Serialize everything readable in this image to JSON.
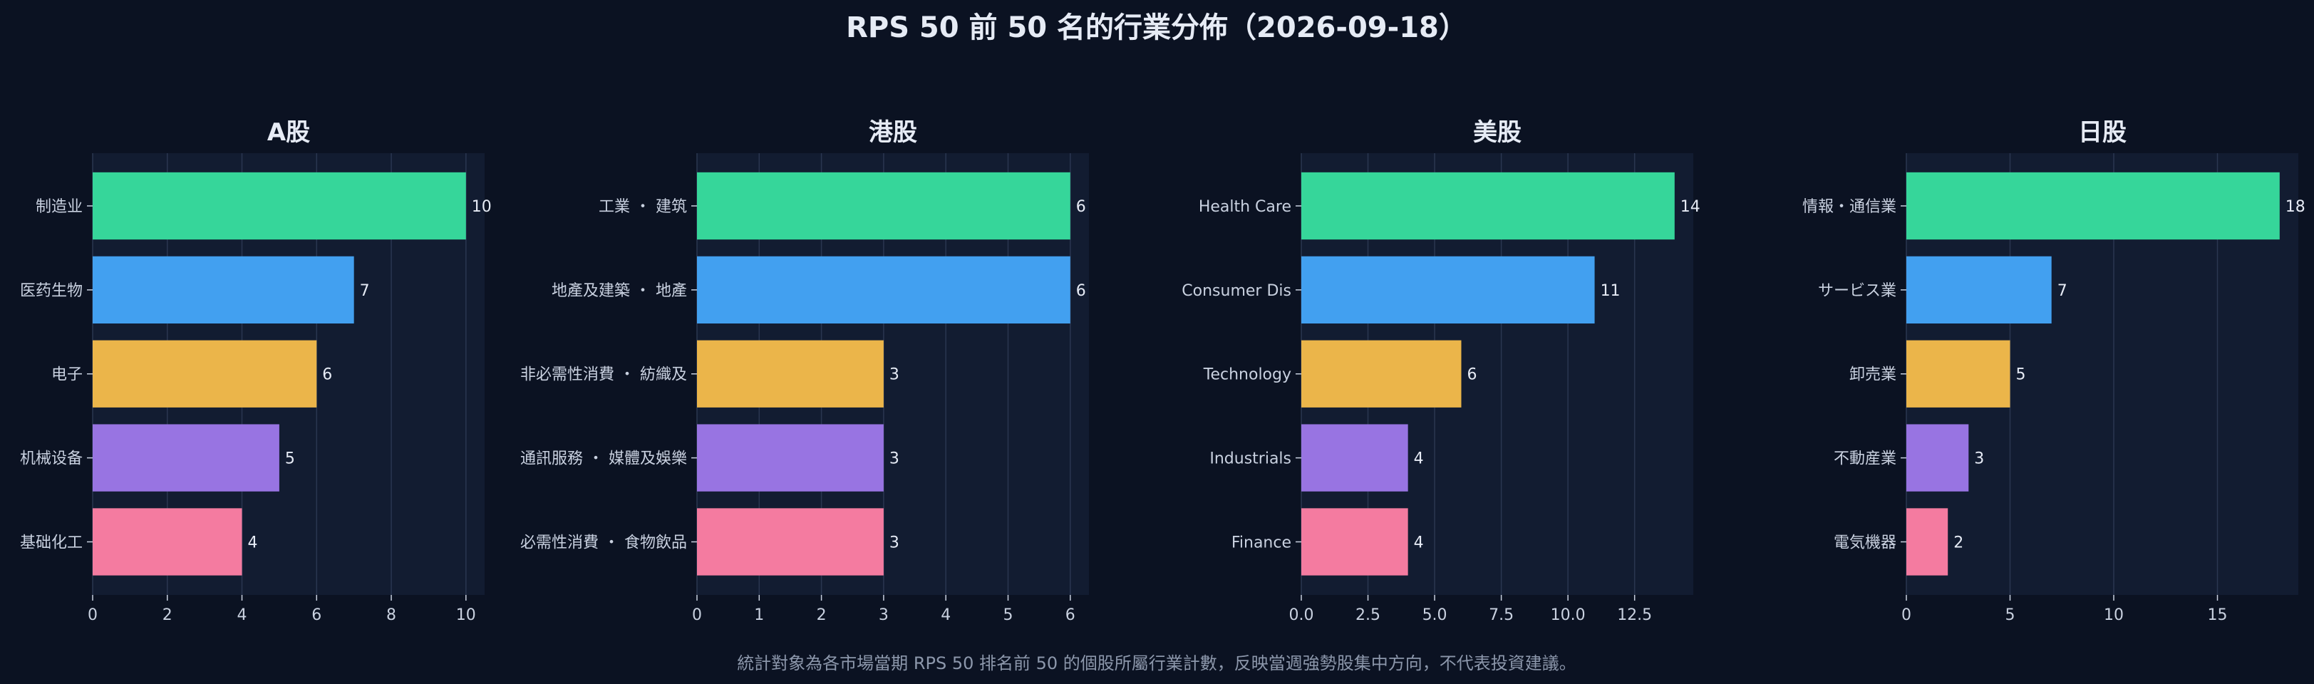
{
  "page": {
    "title": "RPS 50 前 50 名的行業分佈（2026-09-18）",
    "footnote": "統計對象為各市場當期 RPS 50 排名前 50 的個股所屬行業計數，反映當週強勢股集中方向，不代表投資建議。"
  },
  "colors": {
    "background": "#0b1222",
    "plot_background": "#121c31",
    "grid": "#2a3650",
    "text": "#e6ebf5",
    "tick_text": "#c9d1e0",
    "footnote_text": "#8c97ab",
    "bars": [
      "#36d69a",
      "#42a0f0",
      "#ebb54a",
      "#9874e2",
      "#f47ba0"
    ]
  },
  "chart_data": [
    {
      "type": "bar",
      "orientation": "horizontal",
      "title": "A股",
      "categories": [
        "制造业",
        "医药生物",
        "电子",
        "机械设备",
        "基础化工"
      ],
      "values": [
        10,
        7,
        6,
        5,
        4
      ],
      "xlim": [
        0,
        10.5
      ],
      "xticks": [
        0,
        2,
        4,
        6,
        8,
        10
      ],
      "xtick_labels": [
        "0",
        "2",
        "4",
        "6",
        "8",
        "10"
      ],
      "grid": true
    },
    {
      "type": "bar",
      "orientation": "horizontal",
      "title": "港股",
      "categories": [
        "工業 ・ 建筑",
        "地產及建築 ・ 地產",
        "非必需性消費 ・ 紡織及",
        "通訊服務 ・ 媒體及娛樂",
        "必需性消費 ・ 食物飲品"
      ],
      "values": [
        6,
        6,
        3,
        3,
        3
      ],
      "xlim": [
        0,
        6.3
      ],
      "xticks": [
        0,
        1,
        2,
        3,
        4,
        5,
        6
      ],
      "xtick_labels": [
        "0",
        "1",
        "2",
        "3",
        "4",
        "5",
        "6"
      ],
      "grid": true
    },
    {
      "type": "bar",
      "orientation": "horizontal",
      "title": "美股",
      "categories": [
        "Health Care",
        "Consumer Dis",
        "Technology",
        "Industrials",
        "Finance"
      ],
      "values": [
        14,
        11,
        6,
        4,
        4
      ],
      "xlim": [
        0,
        14.7
      ],
      "xticks": [
        0,
        2.5,
        5,
        7.5,
        10,
        12.5
      ],
      "xtick_labels": [
        "0.0",
        "2.5",
        "5.0",
        "7.5",
        "10.0",
        "12.5"
      ],
      "grid": true
    },
    {
      "type": "bar",
      "orientation": "horizontal",
      "title": "日股",
      "categories": [
        "情報・通信業",
        "サービス業",
        "卸売業",
        "不動産業",
        "電気機器"
      ],
      "values": [
        18,
        7,
        5,
        3,
        2
      ],
      "xlim": [
        0,
        18.9
      ],
      "xticks": [
        0,
        5,
        10,
        15
      ],
      "xtick_labels": [
        "0",
        "5",
        "10",
        "15"
      ],
      "grid": true
    }
  ]
}
